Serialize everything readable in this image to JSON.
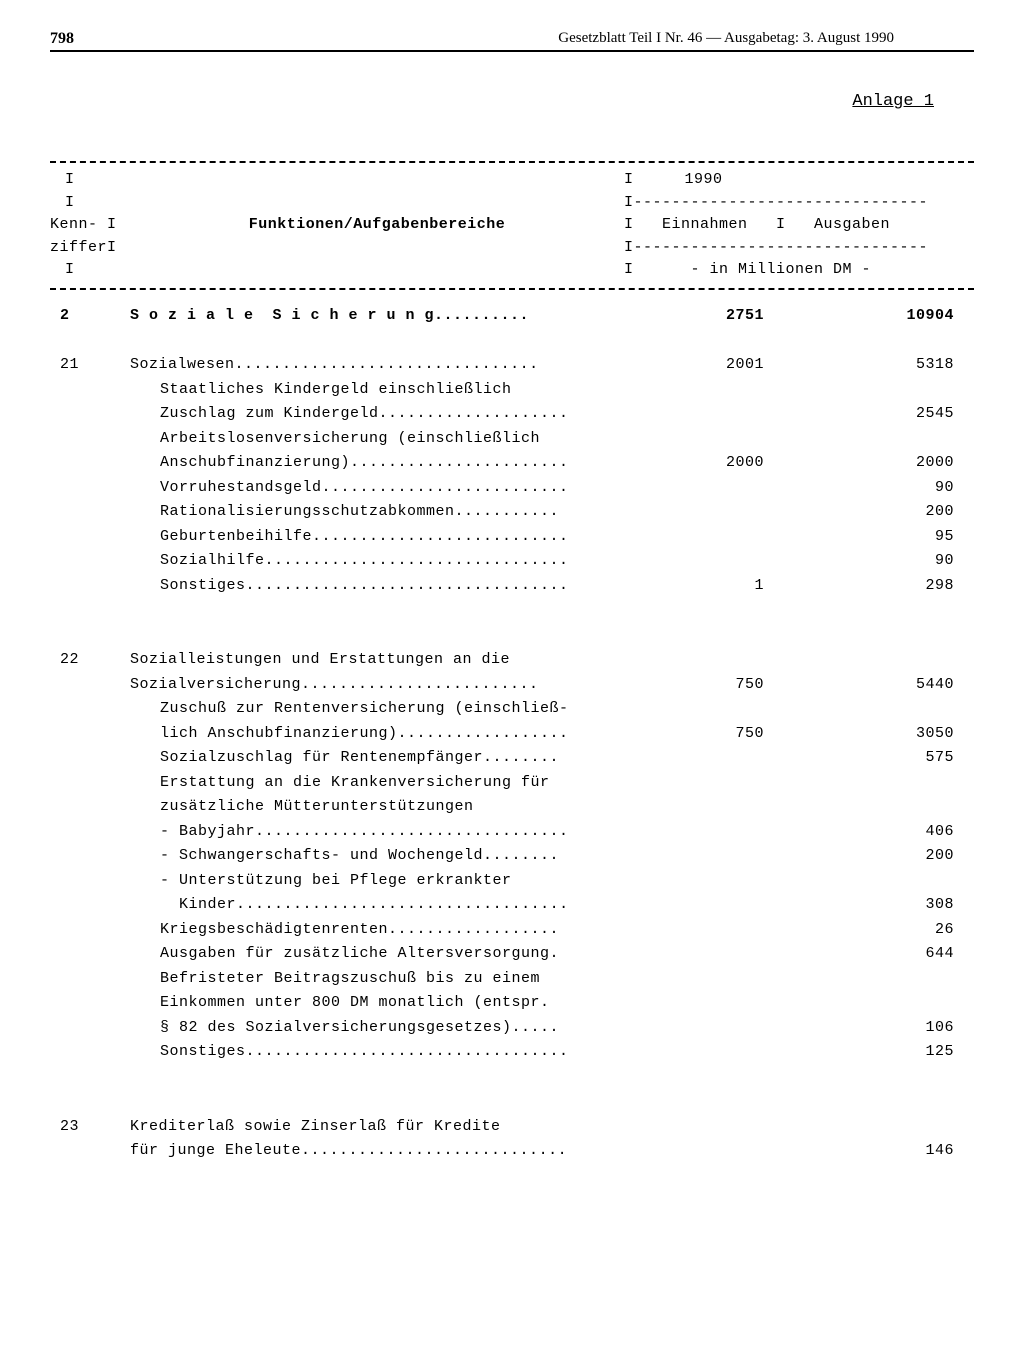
{
  "header": {
    "page_number": "798",
    "title": "Gesetzblatt Teil I Nr. 46 — Ausgabetag: 3. August 1990"
  },
  "anlage": "Anlage 1",
  "table_header": {
    "kenn_label": "Kenn-\nzifferI",
    "funk_label": "Funktionen/Aufgabenbereiche",
    "year": "1990",
    "einnahmen": "Einnahmen",
    "ausgaben": "Ausgaben",
    "unit": "- in Millionen DM -"
  },
  "sections": [
    {
      "kenn": "2",
      "title_spaced": "S o z i a l e  S i c h e r u n g",
      "dots": "..........",
      "ein": "2751",
      "aus": "10904"
    }
  ],
  "section21": {
    "kenn": "21",
    "title": "Sozialwesen",
    "title_dots": "................................",
    "ein": "2001",
    "aus": "5318",
    "rows": [
      {
        "label": "Staatliches Kindergeld einschließlich",
        "ein": "",
        "aus": ""
      },
      {
        "label": "Zuschlag zum Kindergeld",
        "dots": "....................",
        "ein": "",
        "aus": "2545"
      },
      {
        "label": "Arbeitslosenversicherung (einschließlich",
        "ein": "",
        "aus": ""
      },
      {
        "label": "Anschubfinanzierung)",
        "dots": ".......................",
        "ein": "2000",
        "aus": "2000"
      },
      {
        "label": "Vorruhestandsgeld",
        "dots": "..........................",
        "ein": "",
        "aus": "90"
      },
      {
        "label": "Rationalisierungsschutzabkommen",
        "dots": "...........",
        "ein": "",
        "aus": "200"
      },
      {
        "label": "Geburtenbeihilfe",
        "dots": "...........................",
        "ein": "",
        "aus": "95"
      },
      {
        "label": "Sozialhilfe",
        "dots": "................................",
        "ein": "",
        "aus": "90"
      },
      {
        "label": "Sonstiges",
        "dots": "..................................",
        "ein": "1",
        "aus": "298"
      }
    ]
  },
  "section22": {
    "kenn": "22",
    "title_lines": [
      {
        "label": "Sozialleistungen und Erstattungen an die",
        "ein": "",
        "aus": ""
      },
      {
        "label": "Sozialversicherung",
        "dots": ".........................",
        "ein": "750",
        "aus": "5440"
      }
    ],
    "rows": [
      {
        "label": "Zuschuß zur Rentenversicherung (einschließ-",
        "ein": "",
        "aus": ""
      },
      {
        "label": "lich Anschubfinanzierung)",
        "dots": "..................",
        "ein": "750",
        "aus": "3050"
      },
      {
        "label": "Sozialzuschlag für Rentenempfänger",
        "dots": "........",
        "ein": "",
        "aus": "575"
      },
      {
        "label": "Erstattung an die Krankenversicherung für",
        "ein": "",
        "aus": ""
      },
      {
        "label": "zusätzliche Mütterunterstützungen",
        "ein": "",
        "aus": ""
      },
      {
        "label": "- Babyjahr",
        "dots": ".................................",
        "ein": "",
        "aus": "406"
      },
      {
        "label": "- Schwangerschafts- und Wochengeld",
        "dots": "........",
        "ein": "",
        "aus": "200"
      },
      {
        "label": "- Unterstützung bei Pflege erkrankter",
        "ein": "",
        "aus": ""
      },
      {
        "label": "  Kinder",
        "dots": "...................................",
        "ein": "",
        "aus": "308"
      },
      {
        "label": "Kriegsbeschädigtenrenten",
        "dots": "..................",
        "ein": "",
        "aus": "26"
      },
      {
        "label": "Ausgaben für zusätzliche Altersversorgung.",
        "ein": "",
        "aus": "644"
      },
      {
        "label": "Befristeter Beitragszuschuß bis zu einem",
        "ein": "",
        "aus": ""
      },
      {
        "label": "Einkommen unter 800 DM monatlich (entspr.",
        "ein": "",
        "aus": ""
      },
      {
        "label": "§ 82 des Sozialversicherungsgesetzes)",
        "dots": ".....",
        "ein": "",
        "aus": "106"
      },
      {
        "label": "Sonstiges",
        "dots": "..................................",
        "ein": "",
        "aus": "125"
      }
    ]
  },
  "section23": {
    "kenn": "23",
    "rows": [
      {
        "label": "Krediterlaß sowie Zinserlaß für Kredite",
        "ein": "",
        "aus": ""
      },
      {
        "label": "für junge Eheleute",
        "dots": "............................",
        "ein": "",
        "aus": "146"
      }
    ]
  }
}
